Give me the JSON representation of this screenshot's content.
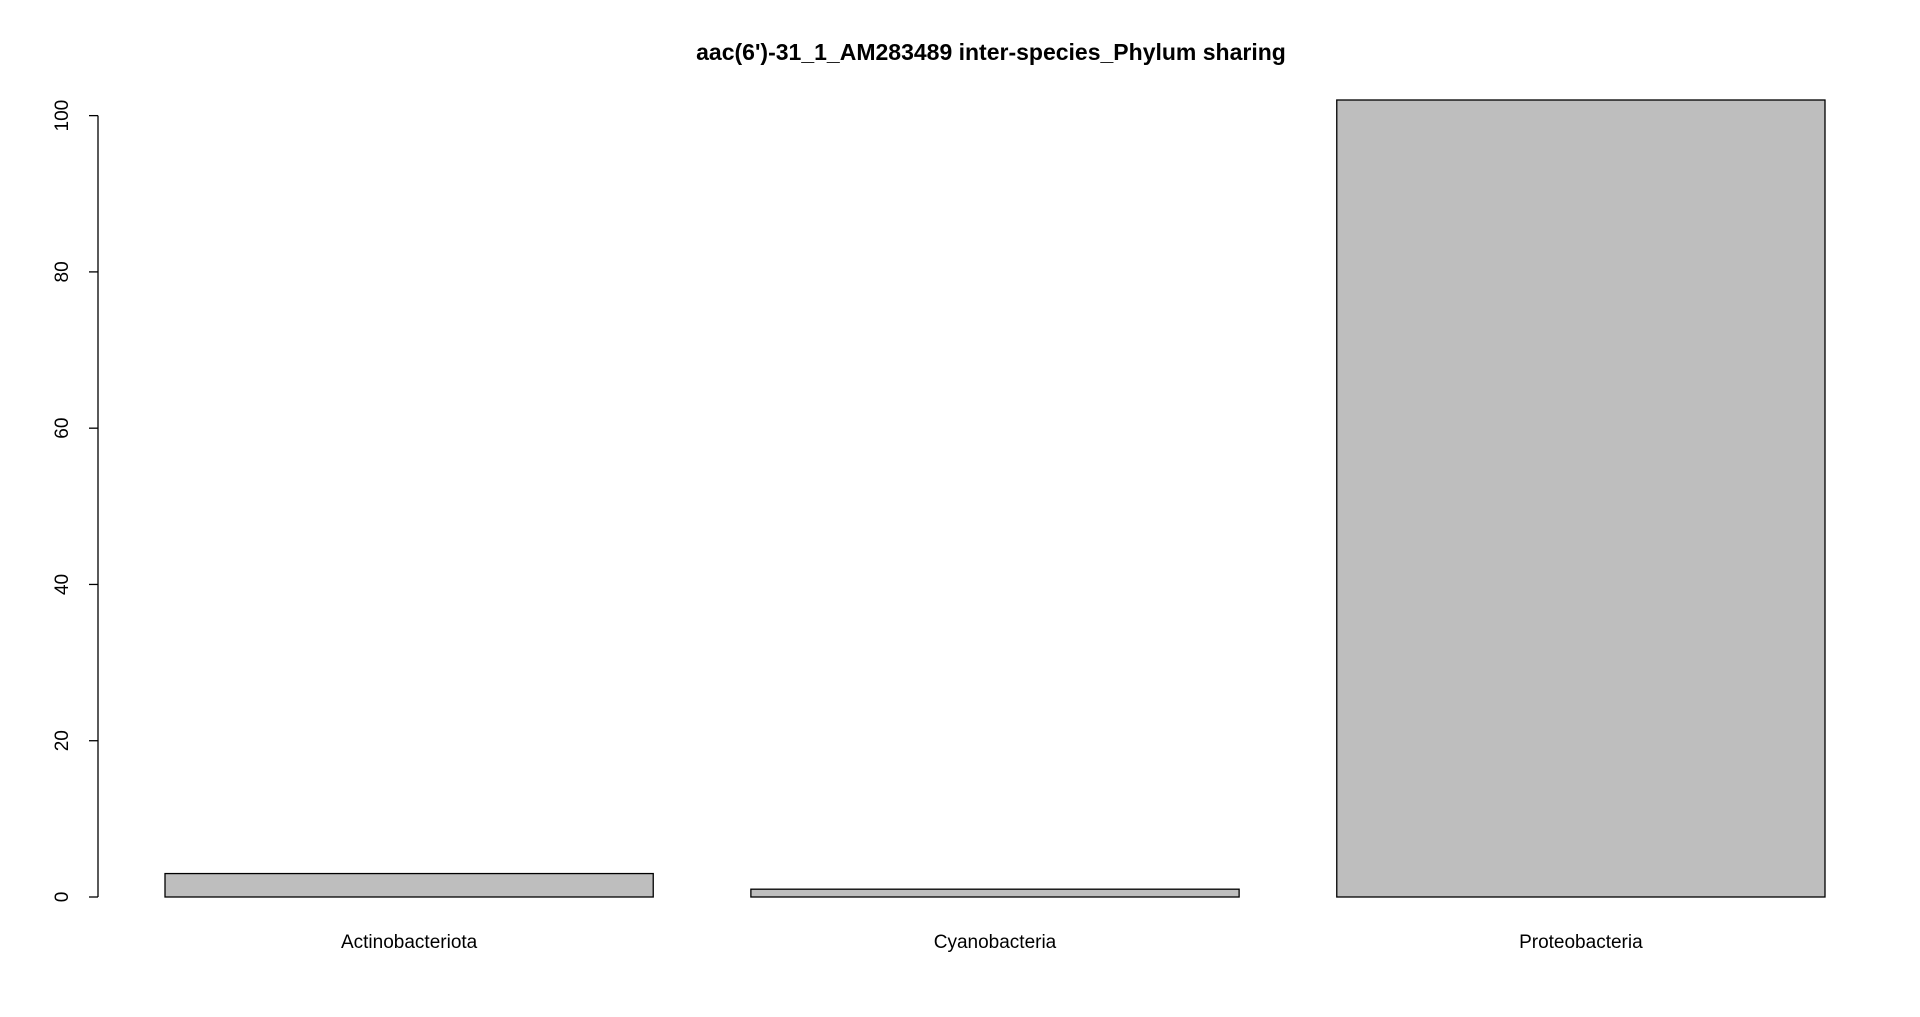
{
  "chart_data": {
    "type": "bar",
    "title": "aac(6')-31_1_AM283489 inter-species_Phylum sharing",
    "xlabel": "",
    "ylabel": "",
    "categories": [
      "Actinobacteriota",
      "Cyanobacteria",
      "Proteobacteria"
    ],
    "values": [
      3,
      1,
      102
    ],
    "ylim": [
      0,
      102
    ],
    "yticks": [
      0,
      20,
      40,
      60,
      80,
      100
    ],
    "bar_color": "#bebebe",
    "grid": false,
    "legend": "none"
  }
}
